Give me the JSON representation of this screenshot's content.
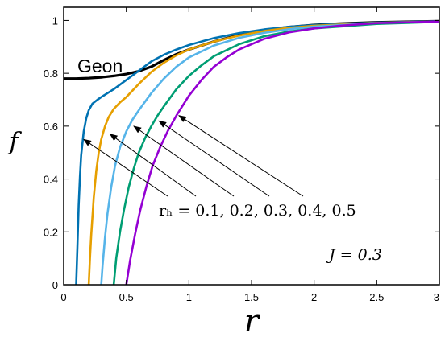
{
  "chart_data": {
    "type": "line",
    "title": "",
    "xlabel": "r",
    "ylabel": "f",
    "xlim": [
      0,
      3
    ],
    "ylim": [
      0,
      1.05
    ],
    "xticks": [
      "0",
      "0.5",
      "1",
      "1.5",
      "2",
      "2.5",
      "3"
    ],
    "yticks": [
      "0",
      "0.2",
      "0.4",
      "0.6",
      "0.8",
      "1"
    ],
    "grid": false,
    "series": [
      {
        "name": "Geon",
        "color": "#000000",
        "x": [
          0,
          0.1,
          0.2,
          0.3,
          0.4,
          0.5,
          0.6,
          0.7,
          0.8,
          0.9,
          1.0,
          1.2,
          1.4,
          1.6,
          1.8,
          2.0,
          2.2,
          2.5,
          3.0
        ],
        "y": [
          0.78,
          0.78,
          0.782,
          0.785,
          0.79,
          0.797,
          0.808,
          0.825,
          0.85,
          0.872,
          0.89,
          0.92,
          0.945,
          0.963,
          0.975,
          0.983,
          0.988,
          0.993,
          0.997
        ]
      },
      {
        "name": "",
        "color": "#0072b2",
        "x": [
          0.1,
          0.11,
          0.12,
          0.13,
          0.14,
          0.16,
          0.18,
          0.2,
          0.23,
          0.27,
          0.3,
          0.35,
          0.4,
          0.5,
          0.6,
          0.7,
          0.8,
          0.9,
          1.0,
          1.2,
          1.4,
          1.6,
          1.8,
          2.0,
          2.5,
          3.0
        ],
        "y": [
          0,
          0.15,
          0.3,
          0.41,
          0.49,
          0.58,
          0.63,
          0.66,
          0.685,
          0.7,
          0.71,
          0.725,
          0.74,
          0.775,
          0.81,
          0.845,
          0.87,
          0.89,
          0.907,
          0.933,
          0.952,
          0.966,
          0.976,
          0.983,
          0.992,
          0.997
        ]
      },
      {
        "name": "",
        "color": "#e69f00",
        "x": [
          0.2,
          0.21,
          0.22,
          0.24,
          0.26,
          0.28,
          0.3,
          0.33,
          0.36,
          0.4,
          0.45,
          0.5,
          0.6,
          0.7,
          0.8,
          0.9,
          1.0,
          1.2,
          1.4,
          1.6,
          1.8,
          2.0,
          2.5,
          3.0
        ],
        "y": [
          0,
          0.1,
          0.19,
          0.33,
          0.43,
          0.5,
          0.55,
          0.6,
          0.635,
          0.665,
          0.69,
          0.71,
          0.76,
          0.805,
          0.84,
          0.868,
          0.89,
          0.92,
          0.943,
          0.96,
          0.972,
          0.98,
          0.991,
          0.996
        ]
      },
      {
        "name": "",
        "color": "#56b4e9",
        "x": [
          0.3,
          0.31,
          0.33,
          0.35,
          0.38,
          0.41,
          0.45,
          0.5,
          0.55,
          0.6,
          0.7,
          0.8,
          0.9,
          1.0,
          1.2,
          1.4,
          1.6,
          1.8,
          2.0,
          2.5,
          3.0
        ],
        "y": [
          0,
          0.07,
          0.18,
          0.27,
          0.37,
          0.45,
          0.52,
          0.58,
          0.625,
          0.66,
          0.725,
          0.78,
          0.825,
          0.86,
          0.905,
          0.934,
          0.953,
          0.967,
          0.977,
          0.99,
          0.996
        ]
      },
      {
        "name": "",
        "color": "#009e73",
        "x": [
          0.4,
          0.42,
          0.45,
          0.48,
          0.52,
          0.56,
          0.6,
          0.65,
          0.7,
          0.75,
          0.8,
          0.9,
          1.0,
          1.1,
          1.2,
          1.4,
          1.6,
          1.8,
          2.0,
          2.5,
          3.0
        ],
        "y": [
          0,
          0.1,
          0.2,
          0.28,
          0.37,
          0.44,
          0.5,
          0.555,
          0.6,
          0.64,
          0.675,
          0.74,
          0.79,
          0.83,
          0.865,
          0.91,
          0.94,
          0.958,
          0.97,
          0.987,
          0.995
        ]
      },
      {
        "name": "",
        "color": "#9400d3",
        "x": [
          0.5,
          0.53,
          0.57,
          0.61,
          0.66,
          0.71,
          0.77,
          0.83,
          0.9,
          1.0,
          1.1,
          1.2,
          1.3,
          1.4,
          1.6,
          1.8,
          2.0,
          2.2,
          2.5,
          3.0
        ],
        "y": [
          0,
          0.09,
          0.19,
          0.28,
          0.37,
          0.45,
          0.52,
          0.58,
          0.64,
          0.715,
          0.775,
          0.825,
          0.86,
          0.89,
          0.93,
          0.955,
          0.97,
          0.98,
          0.99,
          0.996
        ]
      }
    ],
    "arrow_targets": [
      {
        "x": 0.16,
        "y": 0.55
      },
      {
        "x": 0.37,
        "y": 0.57
      },
      {
        "x": 0.56,
        "y": 0.6
      },
      {
        "x": 0.76,
        "y": 0.62
      },
      {
        "x": 0.92,
        "y": 0.64
      }
    ],
    "annotations": {
      "rh_text": "rₕ = 0.1, 0.2, 0.3, 0.4, 0.5",
      "j_text": "J = 0.3",
      "series_label": "Geon"
    }
  }
}
